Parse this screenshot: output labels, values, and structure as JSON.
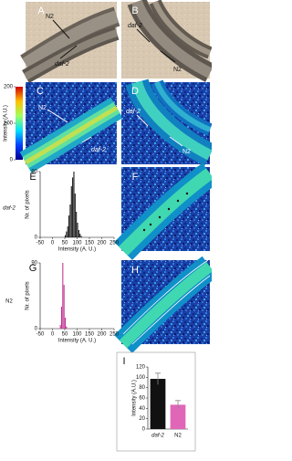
{
  "panel_letters": [
    "A",
    "B",
    "C",
    "D",
    "E",
    "F",
    "G",
    "H",
    "I"
  ],
  "image_labels": {
    "A": [
      "N2",
      "daf-2"
    ],
    "B": [
      "daf-2",
      "N2"
    ],
    "C": [
      "N2",
      "daf-2"
    ],
    "D": [
      "daf-2",
      "N2"
    ]
  },
  "row_labels": [
    "daf-2",
    "N2"
  ],
  "colorbar": {
    "label": "Intensity (A.U.)",
    "lim": [
      0,
      200
    ],
    "ticks": [
      0,
      100,
      200
    ]
  },
  "chart_data": [
    {
      "type": "histogram",
      "ylabel": "Nr. of pixels",
      "xlabel": "Intensity (A. U.)",
      "bins": [
        50,
        55,
        60,
        65,
        70,
        75,
        80,
        85,
        90,
        95,
        100,
        105,
        110,
        115,
        120
      ],
      "values": [
        3,
        8,
        15,
        30,
        45,
        70,
        82,
        90,
        60,
        35,
        20,
        10,
        5,
        2
      ],
      "color": "#111111",
      "xlim": [
        -50,
        250
      ],
      "xticks": [
        -50,
        0,
        50,
        100,
        150,
        200,
        250
      ],
      "ylim": [
        0,
        90
      ],
      "yticks": [
        0,
        90
      ]
    },
    {
      "type": "histogram",
      "ylabel": "Nr. of pixels",
      "xlabel": "Intensity (A. U.)",
      "bins": [
        30,
        35,
        40,
        45,
        50,
        55,
        60
      ],
      "values": [
        5,
        30,
        90,
        60,
        15,
        3
      ],
      "color": "#c0308f",
      "xlim": [
        -50,
        250
      ],
      "xticks": [
        -50,
        0,
        50,
        100,
        150,
        200,
        250
      ],
      "ylim": [
        0,
        90
      ],
      "yticks": [
        0,
        90
      ]
    },
    {
      "type": "bar",
      "ylabel": "Intensity (A.U.)",
      "categories": [
        "daf-2",
        "N2"
      ],
      "values": [
        97,
        47
      ],
      "errors": [
        11,
        8
      ],
      "colors": [
        "#111111",
        "#e066b8"
      ],
      "ylim": [
        0,
        120
      ],
      "yticks": [
        0,
        20,
        40,
        60,
        80,
        100,
        120
      ]
    }
  ]
}
